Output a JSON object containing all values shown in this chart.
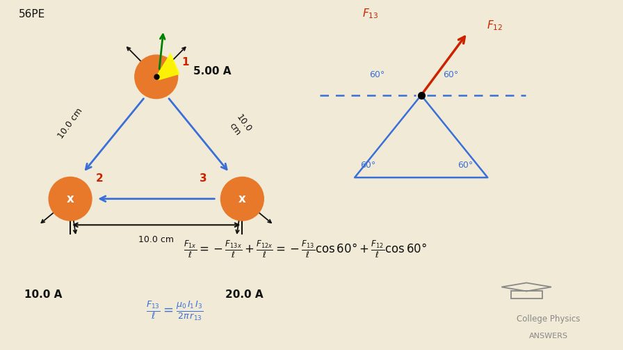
{
  "bg_color": "#f0ead6",
  "title_text": "56PE",
  "panel_bg": "#ffffff",
  "wire_color": "#e8792a",
  "arrow_color": "#3a6fd8",
  "black_color": "#111111",
  "red_label_color": "#cc2200",
  "blue_label_color": "#3a6fd8",
  "force_color": "#cc2200",
  "triangle_color": "#3a6fd8",
  "dashes_color": "#3a6fd8",
  "gray_color": "#888888",
  "current1": "5.00 A",
  "current2": "10.0 A",
  "current3": "20.0 A",
  "dist_side": "10.0 cm",
  "dist_bottom": "10.0 cm",
  "logo_text1": "College Physics",
  "logo_text2": "ANSWERS"
}
